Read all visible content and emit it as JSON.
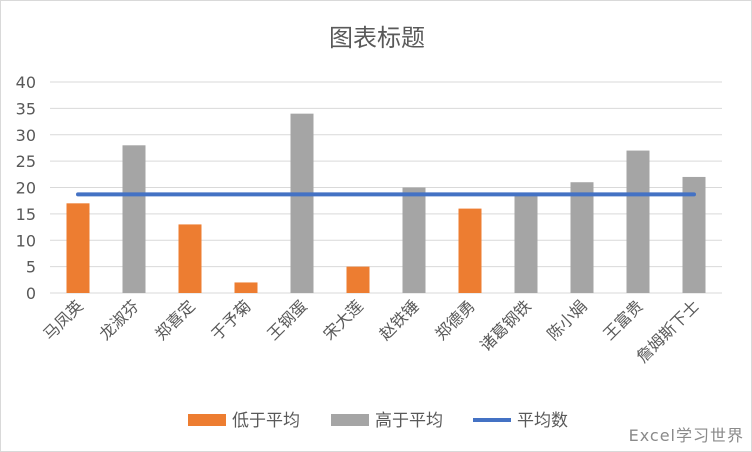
{
  "chart_data": {
    "type": "bar",
    "title": "图表标题",
    "categories": [
      "马凤英",
      "龙淑芬",
      "郑喜定",
      "于予菊",
      "王钢蛋",
      "宋大莲",
      "赵铁锤",
      "郑德勇",
      "诸葛钢铁",
      "陈小娟",
      "王富贵",
      "詹姆斯下士"
    ],
    "values": [
      17,
      28,
      13,
      2,
      34,
      5,
      20,
      16,
      19,
      21,
      27,
      22
    ],
    "ylim": [
      0,
      40
    ],
    "yticks": [
      0,
      5,
      10,
      15,
      20,
      25,
      30,
      35,
      40
    ],
    "average": 18.7,
    "grid": true,
    "legend_position": "bottom",
    "series": [
      {
        "name": "低于平均",
        "color": "#ED7D31",
        "type": "bar"
      },
      {
        "name": "高于平均",
        "color": "#A5A5A5",
        "type": "bar"
      },
      {
        "name": "平均数",
        "color": "#4472C4",
        "type": "line"
      }
    ]
  },
  "watermark": "Excel学习世界"
}
